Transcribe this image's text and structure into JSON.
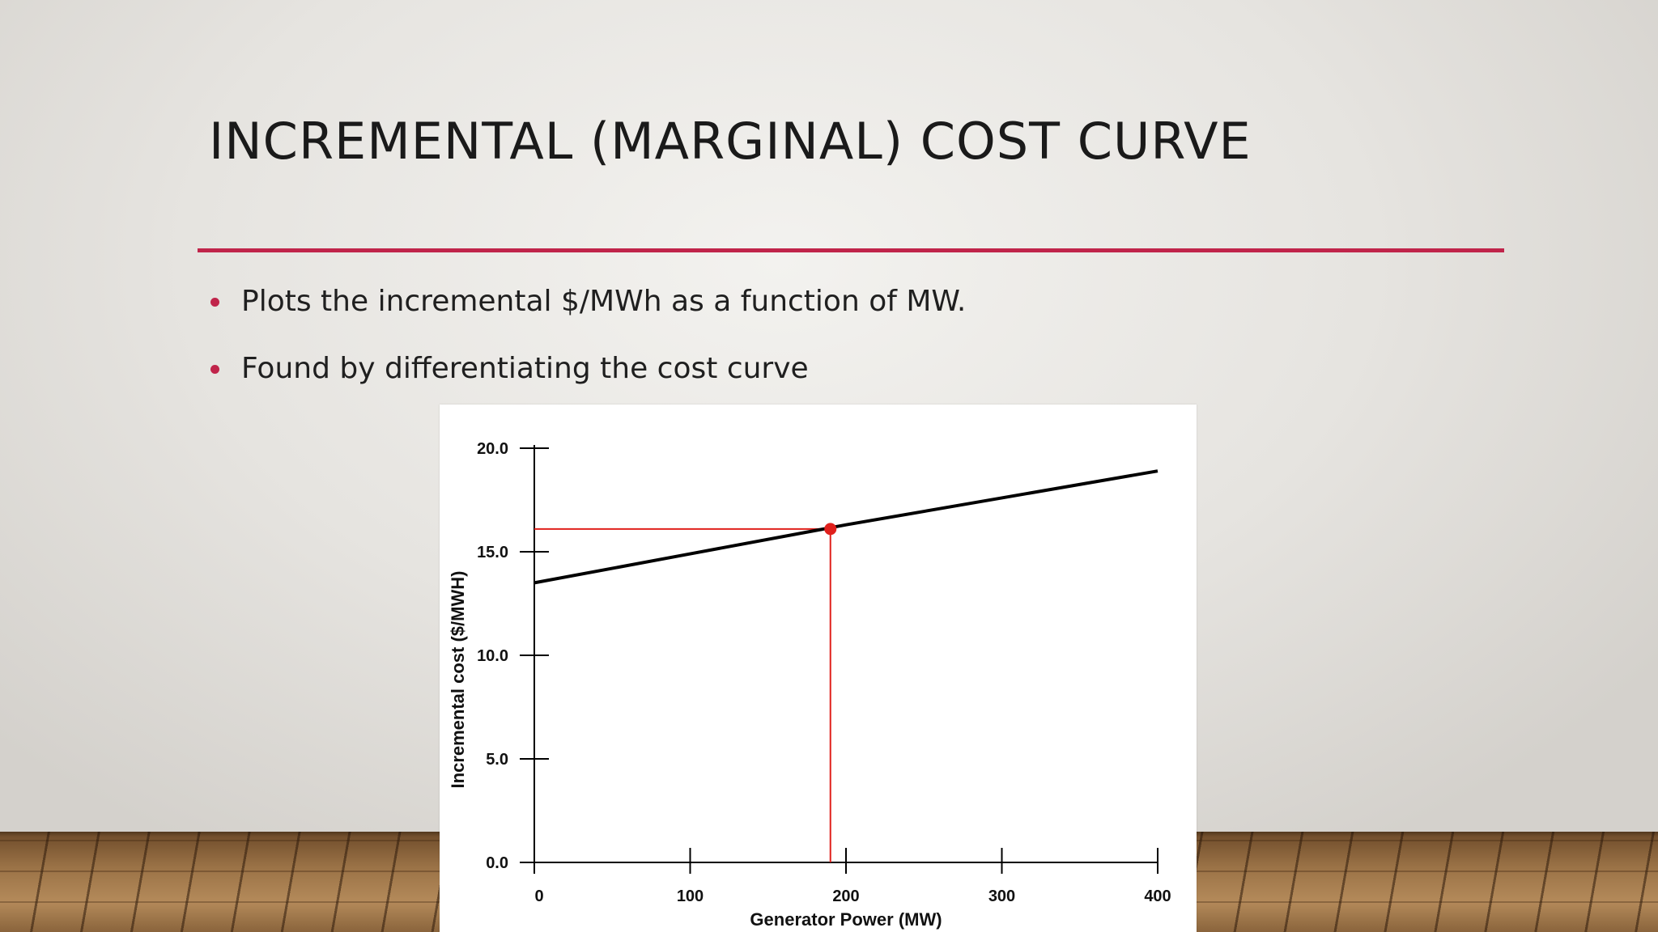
{
  "slide": {
    "title": "INCREMENTAL (MARGINAL) COST CURVE",
    "bullets": [
      "Plots the incremental $/MWh as a function of MW.",
      "Found by differentiating the cost curve"
    ],
    "accent_color": "#c0244a"
  },
  "chart_data": {
    "type": "line",
    "title": "",
    "xlabel": "Generator Power (MW)",
    "ylabel": "Incremental cost ($/MWH)",
    "xlim": [
      0,
      400
    ],
    "ylim": [
      0,
      20
    ],
    "x_ticks": [
      "0",
      "100",
      "200",
      "300",
      "400"
    ],
    "y_ticks": [
      "0.0",
      "5.0",
      "10.0",
      "15.0",
      "20.0"
    ],
    "grid": false,
    "series": [
      {
        "x": [
          0,
          100,
          200,
          300,
          400
        ],
        "y": [
          13.5,
          14.9,
          16.3,
          17.6,
          18.9
        ],
        "color": "#000000"
      }
    ],
    "highlight_point": {
      "x": 190,
      "y": 16.1,
      "color": "#e0201c"
    }
  }
}
